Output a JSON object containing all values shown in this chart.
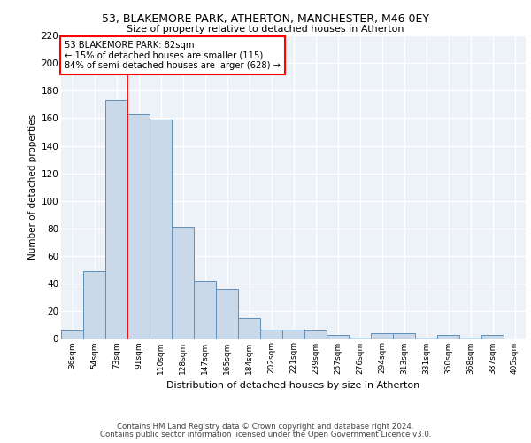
{
  "title1": "53, BLAKEMORE PARK, ATHERTON, MANCHESTER, M46 0EY",
  "title2": "Size of property relative to detached houses in Atherton",
  "xlabel": "Distribution of detached houses by size in Atherton",
  "ylabel": "Number of detached properties",
  "categories": [
    "36sqm",
    "54sqm",
    "73sqm",
    "91sqm",
    "110sqm",
    "128sqm",
    "147sqm",
    "165sqm",
    "184sqm",
    "202sqm",
    "221sqm",
    "239sqm",
    "257sqm",
    "276sqm",
    "294sqm",
    "313sqm",
    "331sqm",
    "350sqm",
    "368sqm",
    "387sqm",
    "405sqm"
  ],
  "values": [
    6,
    49,
    173,
    163,
    159,
    81,
    42,
    36,
    15,
    7,
    7,
    6,
    3,
    1,
    4,
    4,
    1,
    3,
    1,
    3,
    0
  ],
  "bar_color": "#c9d9ea",
  "bar_edge_color": "#6090b8",
  "bar_linewidth": 0.7,
  "annotation_text": "53 BLAKEMORE PARK: 82sqm\n← 15% of detached houses are smaller (115)\n84% of semi-detached houses are larger (628) →",
  "annotation_box_color": "white",
  "annotation_box_edge": "red",
  "line_color": "red",
  "ylim": [
    0,
    220
  ],
  "yticks": [
    0,
    20,
    40,
    60,
    80,
    100,
    120,
    140,
    160,
    180,
    200,
    220
  ],
  "background_color": "#edf1f8",
  "grid_color": "white",
  "footer1": "Contains HM Land Registry data © Crown copyright and database right 2024.",
  "footer2": "Contains public sector information licensed under the Open Government Licence v3.0."
}
